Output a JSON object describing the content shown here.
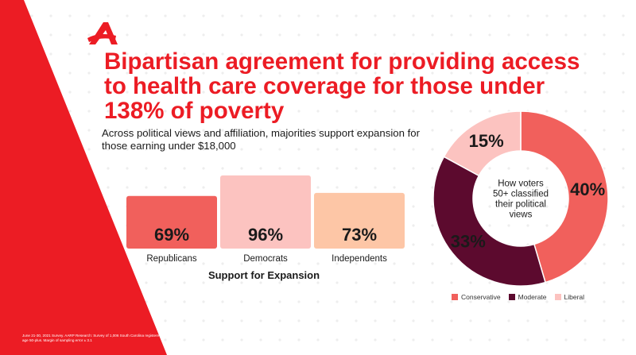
{
  "headline": "Bipartisan agreement for providing access to health care coverage for those under 138% of poverty",
  "subhead": "Across political views and affiliation, majorities support expansion for those earning under $18,000",
  "footnote": "June 21-30, 2021 Survey. AARP Research: Survey of 1,006 South Carolina registered voters, age 50-plus. Margin of sampling error ± 3.1",
  "colors": {
    "brand_red": "#ec1c24",
    "conservative": "#f1605c",
    "moderate": "#5c0a2e",
    "liberal": "#fcc3c0",
    "independents": "#fdc6a6"
  },
  "chart_data": [
    {
      "type": "bar",
      "categories": [
        "Republicans",
        "Democrats",
        "Independents"
      ],
      "values": [
        69,
        96,
        73
      ],
      "value_labels": [
        "69%",
        "96%",
        "73%"
      ],
      "colors": [
        "#f1605c",
        "#fcc3c0",
        "#fdc6a6"
      ],
      "xlabel": "Support for Expansion",
      "ylabel": "",
      "ylim": [
        0,
        100
      ],
      "grid": false
    },
    {
      "type": "pie",
      "style": "donut",
      "center_label": [
        "How voters",
        "50+ classified",
        "their political",
        "views"
      ],
      "labels": [
        "Conservative",
        "Moderate",
        "Liberal"
      ],
      "values": [
        40,
        33,
        15
      ],
      "value_labels": [
        "40%",
        "33%",
        "15%"
      ],
      "colors": [
        "#f1605c",
        "#5c0a2e",
        "#fcc3c0"
      ],
      "legend_position": "bottom"
    }
  ]
}
